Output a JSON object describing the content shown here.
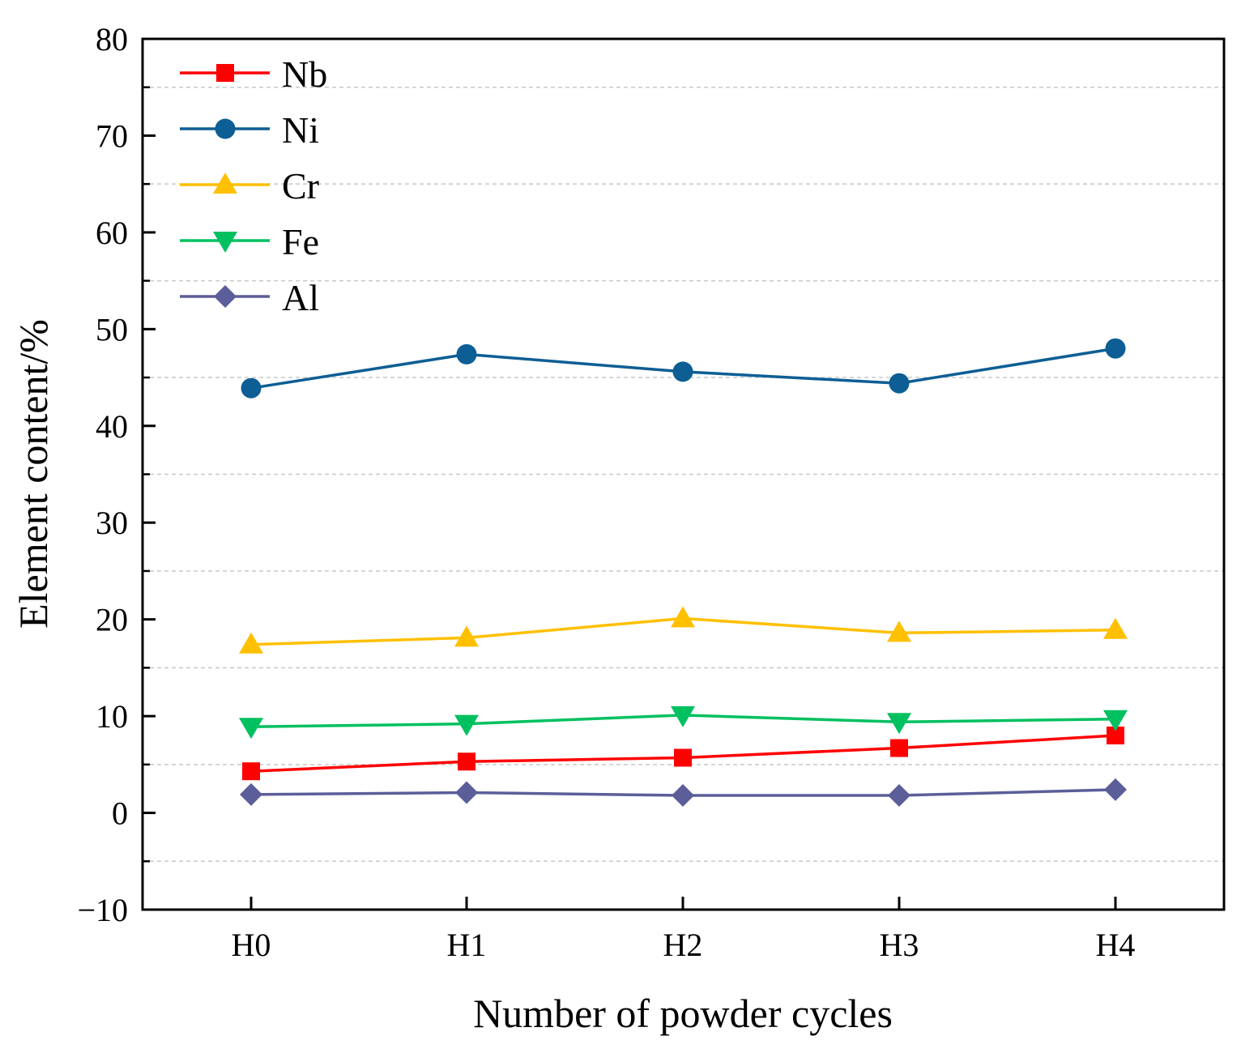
{
  "chart_data": {
    "type": "line",
    "title": "",
    "xlabel": "Number of powder cycles",
    "ylabel": "Element content/%",
    "categories": [
      "H0",
      "H1",
      "H2",
      "H3",
      "H4"
    ],
    "ylim": [
      -10,
      80
    ],
    "yticks": [
      -10,
      0,
      10,
      20,
      30,
      40,
      50,
      60,
      70,
      80
    ],
    "ytick_labels": [
      "−10",
      "0",
      "10",
      "20",
      "30",
      "40",
      "50",
      "60",
      "70",
      "80"
    ],
    "grid": true,
    "legend_position": "top-left",
    "series": [
      {
        "name": "Nb",
        "color": "#ff0000",
        "marker": "square",
        "values": [
          4.3,
          5.3,
          5.7,
          6.7,
          8.0
        ]
      },
      {
        "name": "Ni",
        "color": "#0d5e94",
        "marker": "circle",
        "values": [
          43.9,
          47.4,
          45.6,
          44.4,
          48.0
        ]
      },
      {
        "name": "Cr",
        "color": "#ffc000",
        "marker": "triangle-up",
        "values": [
          17.4,
          18.1,
          20.1,
          18.6,
          18.9
        ]
      },
      {
        "name": "Fe",
        "color": "#00c060",
        "marker": "triangle-down",
        "values": [
          8.9,
          9.2,
          10.1,
          9.4,
          9.7
        ]
      },
      {
        "name": "Al",
        "color": "#5b5e99",
        "marker": "diamond",
        "values": [
          1.9,
          2.1,
          1.8,
          1.8,
          2.4
        ]
      }
    ]
  }
}
